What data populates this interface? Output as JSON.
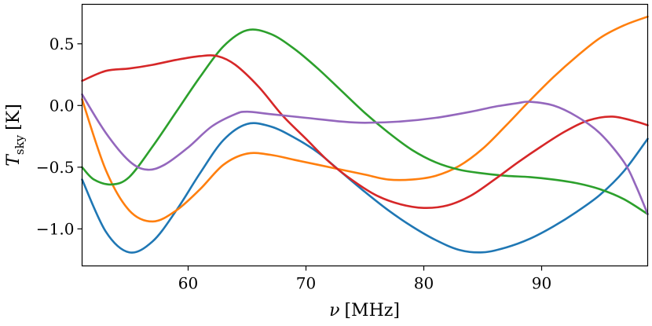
{
  "chart_data": {
    "type": "line",
    "xlabel_var": "ν",
    "xlabel_unit": "[MHz]",
    "ylabel_var": "T",
    "ylabel_sub": "sky",
    "ylabel_unit": "[K]",
    "xlim": [
      51,
      99
    ],
    "ylim": [
      -1.3,
      0.82
    ],
    "xticks": [
      60,
      70,
      80,
      90
    ],
    "xtick_labels": [
      "60",
      "70",
      "80",
      "90"
    ],
    "yticks": [
      0.5,
      0.0,
      -0.5,
      -1.0
    ],
    "ytick_labels": [
      "0.5",
      "0.0",
      "−0.5",
      "−1.0"
    ],
    "grid": false,
    "series": [
      {
        "name": "blue",
        "color": "#1f77b4",
        "points": [
          [
            51,
            -0.6
          ],
          [
            53,
            -1.02
          ],
          [
            55,
            -1.19
          ],
          [
            57,
            -1.1
          ],
          [
            59,
            -0.85
          ],
          [
            61,
            -0.55
          ],
          [
            63,
            -0.28
          ],
          [
            65,
            -0.15
          ],
          [
            67,
            -0.17
          ],
          [
            69,
            -0.26
          ],
          [
            71,
            -0.38
          ],
          [
            73,
            -0.54
          ],
          [
            75,
            -0.7
          ],
          [
            77,
            -0.85
          ],
          [
            79,
            -0.98
          ],
          [
            81,
            -1.09
          ],
          [
            83,
            -1.17
          ],
          [
            85,
            -1.19
          ],
          [
            87,
            -1.15
          ],
          [
            89,
            -1.08
          ],
          [
            91,
            -0.98
          ],
          [
            93,
            -0.86
          ],
          [
            95,
            -0.72
          ],
          [
            97,
            -0.53
          ],
          [
            99,
            -0.27
          ]
        ]
      },
      {
        "name": "orange",
        "color": "#ff7f0e",
        "points": [
          [
            51,
            0.05
          ],
          [
            53,
            -0.52
          ],
          [
            55,
            -0.85
          ],
          [
            57,
            -0.94
          ],
          [
            59,
            -0.85
          ],
          [
            61,
            -0.68
          ],
          [
            63,
            -0.48
          ],
          [
            65,
            -0.39
          ],
          [
            67,
            -0.4
          ],
          [
            69,
            -0.44
          ],
          [
            71,
            -0.48
          ],
          [
            73,
            -0.52
          ],
          [
            75,
            -0.56
          ],
          [
            77,
            -0.6
          ],
          [
            79,
            -0.6
          ],
          [
            81,
            -0.57
          ],
          [
            83,
            -0.49
          ],
          [
            85,
            -0.35
          ],
          [
            87,
            -0.16
          ],
          [
            89,
            0.04
          ],
          [
            91,
            0.23
          ],
          [
            93,
            0.4
          ],
          [
            95,
            0.55
          ],
          [
            97,
            0.65
          ],
          [
            99,
            0.72
          ]
        ]
      },
      {
        "name": "green",
        "color": "#2ca02c",
        "points": [
          [
            51,
            -0.5
          ],
          [
            52,
            -0.6
          ],
          [
            53.5,
            -0.64
          ],
          [
            55,
            -0.58
          ],
          [
            57,
            -0.33
          ],
          [
            59,
            -0.05
          ],
          [
            61,
            0.23
          ],
          [
            63,
            0.48
          ],
          [
            65,
            0.61
          ],
          [
            67,
            0.58
          ],
          [
            69,
            0.46
          ],
          [
            71,
            0.3
          ],
          [
            73,
            0.12
          ],
          [
            75,
            -0.06
          ],
          [
            77,
            -0.22
          ],
          [
            79,
            -0.36
          ],
          [
            81,
            -0.46
          ],
          [
            83,
            -0.52
          ],
          [
            85,
            -0.55
          ],
          [
            87,
            -0.57
          ],
          [
            89,
            -0.58
          ],
          [
            91,
            -0.6
          ],
          [
            93,
            -0.63
          ],
          [
            95,
            -0.68
          ],
          [
            97,
            -0.76
          ],
          [
            99,
            -0.88
          ]
        ]
      },
      {
        "name": "red",
        "color": "#d62728",
        "points": [
          [
            51,
            0.2
          ],
          [
            53,
            0.28
          ],
          [
            55,
            0.3
          ],
          [
            57,
            0.33
          ],
          [
            59,
            0.37
          ],
          [
            61,
            0.4
          ],
          [
            62.5,
            0.4
          ],
          [
            64,
            0.33
          ],
          [
            66,
            0.15
          ],
          [
            68,
            -0.08
          ],
          [
            70,
            -0.27
          ],
          [
            72,
            -0.46
          ],
          [
            74,
            -0.61
          ],
          [
            76,
            -0.73
          ],
          [
            78,
            -0.8
          ],
          [
            80,
            -0.83
          ],
          [
            82,
            -0.81
          ],
          [
            84,
            -0.73
          ],
          [
            86,
            -0.6
          ],
          [
            88,
            -0.46
          ],
          [
            90,
            -0.33
          ],
          [
            92,
            -0.21
          ],
          [
            94,
            -0.12
          ],
          [
            96,
            -0.09
          ],
          [
            98,
            -0.13
          ],
          [
            99,
            -0.16
          ]
        ]
      },
      {
        "name": "purple",
        "color": "#9467bd",
        "points": [
          [
            51,
            0.09
          ],
          [
            53,
            -0.22
          ],
          [
            55,
            -0.45
          ],
          [
            56.5,
            -0.52
          ],
          [
            58,
            -0.48
          ],
          [
            60,
            -0.34
          ],
          [
            62,
            -0.17
          ],
          [
            64,
            -0.07
          ],
          [
            65,
            -0.05
          ],
          [
            67,
            -0.07
          ],
          [
            70,
            -0.1
          ],
          [
            73,
            -0.13
          ],
          [
            75,
            -0.14
          ],
          [
            78,
            -0.13
          ],
          [
            81,
            -0.1
          ],
          [
            84,
            -0.05
          ],
          [
            86,
            -0.01
          ],
          [
            88,
            0.02
          ],
          [
            89,
            0.03
          ],
          [
            91,
            0.0
          ],
          [
            93,
            -0.09
          ],
          [
            95,
            -0.23
          ],
          [
            97,
            -0.46
          ],
          [
            98,
            -0.65
          ],
          [
            99,
            -0.88
          ]
        ]
      }
    ]
  }
}
